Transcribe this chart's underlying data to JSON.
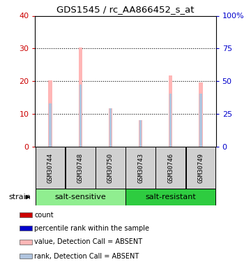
{
  "title": "GDS1545 / rc_AA866452_s_at",
  "samples": [
    "GSM30744",
    "GSM30748",
    "GSM30750",
    "GSM30743",
    "GSM30746",
    "GSM30749"
  ],
  "group_labels": [
    "salt-sensitive",
    "salt-resistant"
  ],
  "group_colors": [
    "#90EE90",
    "#2ECC40"
  ],
  "bar_color_absent_value": "#FFB6B6",
  "bar_color_absent_rank": "#B0C4DE",
  "bar_color_count": "#CC0000",
  "bar_color_rank": "#0000CC",
  "absent_value_heights": [
    20.2,
    30.2,
    11.8,
    8.2,
    21.8,
    19.6
  ],
  "absent_rank_heights": [
    13.2,
    19.0,
    11.8,
    8.2,
    16.2,
    16.2
  ],
  "ylim_left": [
    0,
    40
  ],
  "ylim_right": [
    0,
    100
  ],
  "yticks_left": [
    0,
    10,
    20,
    30,
    40
  ],
  "ytick_labels_right": [
    "0",
    "25",
    "50",
    "75",
    "100%"
  ],
  "ycolor_left": "#CC0000",
  "ycolor_right": "#0000CC",
  "legend_items": [
    {
      "label": "count",
      "color": "#CC0000"
    },
    {
      "label": "percentile rank within the sample",
      "color": "#0000CC"
    },
    {
      "label": "value, Detection Call = ABSENT",
      "color": "#FFB6B6"
    },
    {
      "label": "rank, Detection Call = ABSENT",
      "color": "#B0C4DE"
    }
  ],
  "sample_box_color": "#D0D0D0",
  "strain_label": "strain",
  "figsize": [
    3.6,
    3.75
  ],
  "dpi": 100
}
